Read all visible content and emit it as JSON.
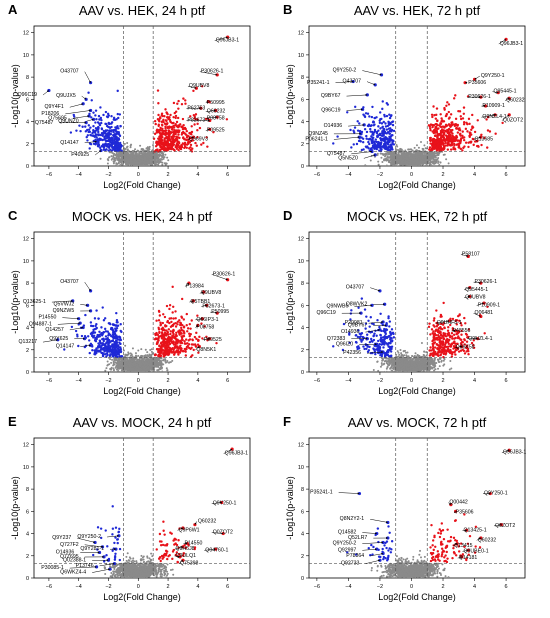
{
  "chart_data": [
    {
      "panel_letter": "A",
      "type": "scatter",
      "title": "AAV vs. HEK, 24 h ptf",
      "xlabel": "Log2(Fold Change)",
      "ylabel": "-Log10(p-value)",
      "xlim": [
        -7,
        7.5
      ],
      "ylim": [
        0,
        12.6
      ],
      "xticks": [
        -6,
        -4,
        -2,
        0,
        2,
        4,
        6
      ],
      "yticks": [
        0,
        2,
        4,
        6,
        8,
        10,
        12
      ],
      "fc_threshold": [
        -1,
        1
      ],
      "p_threshold": 1.3,
      "grid": false,
      "up_count": 430,
      "down_count": 310,
      "labels": [
        {
          "text": "Q96JB3-1",
          "x": 6.0,
          "y": 11.6,
          "tx": 5.2,
          "ty": 11.2
        },
        {
          "text": "O43707",
          "x": -3.2,
          "y": 7.5,
          "tx": -4.0,
          "ty": 8.4
        },
        {
          "text": "Q96C19",
          "x": -6.0,
          "y": 6.8,
          "tx": -6.8,
          "ty": 6.3
        },
        {
          "text": "Q9Y4F1",
          "x": -3.7,
          "y": 5.6,
          "tx": -5.0,
          "ty": 5.2
        },
        {
          "text": "Q9UJX5",
          "x": -3.5,
          "y": 6.0,
          "tx": -4.2,
          "ty": 6.2
        },
        {
          "text": "P18206",
          "x": -3.2,
          "y": 5.0,
          "tx": -5.3,
          "ty": 4.6
        },
        {
          "text": "Q75695",
          "x": -3.3,
          "y": 4.5,
          "tx": -4.8,
          "ty": 4.2
        },
        {
          "text": "Q9UNZ0",
          "x": -3.0,
          "y": 4.2,
          "tx": -4.0,
          "ty": 3.9
        },
        {
          "text": "Q75487",
          "x": -3.5,
          "y": 3.9,
          "tx": -5.7,
          "ty": 3.8
        },
        {
          "text": "Q14147",
          "x": -2.8,
          "y": 2.2,
          "tx": -4.0,
          "ty": 2.0
        },
        {
          "text": "P40925",
          "x": -2.5,
          "y": 1.4,
          "tx": -3.3,
          "ty": 0.9
        },
        {
          "text": "P30626-1",
          "x": 5.3,
          "y": 8.2,
          "tx": 4.2,
          "ty": 8.4
        },
        {
          "text": "Q9UBV8",
          "x": 3.9,
          "y": 7.0,
          "tx": 3.4,
          "ty": 7.1
        },
        {
          "text": "P50995",
          "x": 4.7,
          "y": 5.8,
          "tx": 4.6,
          "ty": 5.6
        },
        {
          "text": "P62753",
          "x": 4.2,
          "y": 5.2,
          "tx": 3.3,
          "ty": 5.1
        },
        {
          "text": "Q60232",
          "x": 5.2,
          "y": 5.0,
          "tx": 4.6,
          "ty": 4.8
        },
        {
          "text": "P08758",
          "x": 5.3,
          "y": 4.4,
          "tx": 4.6,
          "ty": 4.2
        },
        {
          "text": "P82673-1",
          "x": 4.8,
          "y": 4.1,
          "tx": 3.3,
          "ty": 4.0
        },
        {
          "text": "P09525",
          "x": 4.8,
          "y": 3.3,
          "tx": 4.6,
          "ty": 3.1
        },
        {
          "text": "Q969V3",
          "x": 3.7,
          "y": 2.6,
          "tx": 3.4,
          "ty": 2.3
        }
      ]
    },
    {
      "panel_letter": "B",
      "type": "scatter",
      "title": "AAV vs. HEK, 72 h ptf",
      "xlabel": "Log2(Fold Change)",
      "ylabel": "-Log10(p-value)",
      "xlim": [
        -6.5,
        7.2
      ],
      "ylim": [
        0,
        12.6
      ],
      "xticks": [
        -6,
        -4,
        -2,
        0,
        2,
        4,
        6
      ],
      "yticks": [
        0,
        2,
        4,
        6,
        8,
        10,
        12
      ],
      "fc_threshold": [
        -1,
        1
      ],
      "p_threshold": 1.3,
      "grid": false,
      "up_count": 420,
      "down_count": 280,
      "labels": [
        {
          "text": "Q96JB3-1",
          "x": 6.0,
          "y": 11.4,
          "tx": 5.6,
          "ty": 10.9
        },
        {
          "text": "Q9Y250-2",
          "x": -1.9,
          "y": 8.2,
          "tx": -3.5,
          "ty": 8.5
        },
        {
          "text": "P35241-1",
          "x": -3.7,
          "y": 7.6,
          "tx": -5.2,
          "ty": 7.4
        },
        {
          "text": "Q43707",
          "x": -2.3,
          "y": 7.3,
          "tx": -3.2,
          "ty": 7.5
        },
        {
          "text": "Q9BY67",
          "x": -2.8,
          "y": 6.4,
          "tx": -4.5,
          "ty": 6.2
        },
        {
          "text": "Q96C19",
          "x": -3.1,
          "y": 5.1,
          "tx": -4.5,
          "ty": 4.9
        },
        {
          "text": "O14936",
          "x": -3.0,
          "y": 3.7,
          "tx": -4.4,
          "ty": 3.5
        },
        {
          "text": "Q9NZ45",
          "x": -3.2,
          "y": 2.9,
          "tx": -5.3,
          "ty": 2.8
        },
        {
          "text": "P06241-1",
          "x": -3.3,
          "y": 2.6,
          "tx": -5.3,
          "ty": 2.3
        },
        {
          "text": "Q75487",
          "x": -2.5,
          "y": 1.3,
          "tx": -4.2,
          "ty": 1.0
        },
        {
          "text": "Q5N5Z0",
          "x": -2.3,
          "y": 1.0,
          "tx": -3.4,
          "ty": 0.6
        },
        {
          "text": "Q9Y250-1",
          "x": 4.0,
          "y": 7.8,
          "tx": 4.4,
          "ty": 8.0
        },
        {
          "text": "P35606",
          "x": 3.4,
          "y": 7.5,
          "tx": 3.6,
          "ty": 7.4
        },
        {
          "text": "Q95445-1",
          "x": 5.5,
          "y": 6.6,
          "tx": 5.2,
          "ty": 6.6
        },
        {
          "text": "P30626-1",
          "x": 4.4,
          "y": 6.2,
          "tx": 3.6,
          "ty": 6.1
        },
        {
          "text": "Q60232",
          "x": 6.2,
          "y": 6.1,
          "tx": 6.0,
          "ty": 5.8
        },
        {
          "text": "P10909-1",
          "x": 4.7,
          "y": 5.4,
          "tx": 4.5,
          "ty": 5.3
        },
        {
          "text": "Q9NZL4-1",
          "x": 5.3,
          "y": 4.6,
          "tx": 4.5,
          "ty": 4.3
        },
        {
          "text": "Q0ZOT2",
          "x": 6.2,
          "y": 4.6,
          "tx": 5.8,
          "ty": 4.0
        },
        {
          "text": "Q13685",
          "x": 4.4,
          "y": 2.6,
          "tx": 4.0,
          "ty": 2.3
        }
      ]
    },
    {
      "panel_letter": "C",
      "type": "scatter",
      "title": "MOCK vs. HEK, 24 h ptf",
      "xlabel": "Log2(Fold Change)",
      "ylabel": "-Log10(p-value)",
      "xlim": [
        -7,
        7.5
      ],
      "ylim": [
        0,
        12.6
      ],
      "xticks": [
        -6,
        -4,
        -2,
        0,
        2,
        4,
        6
      ],
      "yticks": [
        0,
        2,
        4,
        6,
        8,
        10,
        12
      ],
      "fc_threshold": [
        -1,
        1
      ],
      "p_threshold": 1.3,
      "grid": false,
      "up_count": 400,
      "down_count": 320,
      "labels": [
        {
          "text": "P30626-1",
          "x": 6.0,
          "y": 8.3,
          "tx": 5.0,
          "ty": 8.7
        },
        {
          "text": "O43707",
          "x": -3.2,
          "y": 7.3,
          "tx": -4.0,
          "ty": 8.0
        },
        {
          "text": "Q13625-1",
          "x": -4.4,
          "y": 6.4,
          "tx": -6.2,
          "ty": 6.2
        },
        {
          "text": "Q5VWJ2",
          "x": -3.4,
          "y": 6.0,
          "tx": -4.3,
          "ty": 6.0
        },
        {
          "text": "Q9NZW5",
          "x": -3.2,
          "y": 5.5,
          "tx": -4.3,
          "ty": 5.4
        },
        {
          "text": "P14550",
          "x": -4.0,
          "y": 4.8,
          "tx": -5.5,
          "ty": 4.8
        },
        {
          "text": "Q94887-1",
          "x": -3.9,
          "y": 4.4,
          "tx": -5.8,
          "ty": 4.2
        },
        {
          "text": "Q14257",
          "x": -3.7,
          "y": 4.0,
          "tx": -5.0,
          "ty": 3.7
        },
        {
          "text": "Q13217",
          "x": -5.4,
          "y": 2.9,
          "tx": -6.8,
          "ty": 2.6
        },
        {
          "text": "Q9Y625",
          "x": -3.6,
          "y": 3.0,
          "tx": -4.7,
          "ty": 2.9
        },
        {
          "text": "Q14147",
          "x": -3.2,
          "y": 2.4,
          "tx": -4.3,
          "ty": 2.2
        },
        {
          "text": "P13984",
          "x": 3.4,
          "y": 8.0,
          "tx": 3.2,
          "ty": 7.6
        },
        {
          "text": "Q9UBV8",
          "x": 4.4,
          "y": 7.2,
          "tx": 4.2,
          "ty": 7.0
        },
        {
          "text": "Q5TBB1",
          "x": 3.7,
          "y": 6.4,
          "tx": 3.5,
          "ty": 6.2
        },
        {
          "text": "P82673-1",
          "x": 4.6,
          "y": 6.0,
          "tx": 4.3,
          "ty": 5.8
        },
        {
          "text": "P50995",
          "x": 5.3,
          "y": 5.3,
          "tx": 4.9,
          "ty": 5.3
        },
        {
          "text": "Q66IP3-1",
          "x": 4.3,
          "y": 4.8,
          "tx": 3.9,
          "ty": 4.6
        },
        {
          "text": "P08758",
          "x": 4.0,
          "y": 4.2,
          "tx": 3.9,
          "ty": 3.9
        },
        {
          "text": "P09525",
          "x": 4.8,
          "y": 3.0,
          "tx": 4.4,
          "ty": 2.8
        },
        {
          "text": "Q8N5K1",
          "x": 4.1,
          "y": 2.3,
          "tx": 3.9,
          "ty": 1.9
        }
      ]
    },
    {
      "panel_letter": "D",
      "type": "scatter",
      "title": "MOCK vs. HEK, 72 h ptf",
      "xlabel": "Log2(Fold Change)",
      "ylabel": "-Log10(p-value)",
      "xlim": [
        -6.5,
        7.2
      ],
      "ylim": [
        0,
        12.6
      ],
      "xticks": [
        -6,
        -4,
        -2,
        0,
        2,
        4,
        6
      ],
      "yticks": [
        0,
        2,
        4,
        6,
        8,
        10,
        12
      ],
      "fc_threshold": [
        -1,
        1
      ],
      "p_threshold": 1.3,
      "grid": false,
      "up_count": 300,
      "down_count": 210,
      "labels": [
        {
          "text": "P58107",
          "x": 3.6,
          "y": 10.4,
          "tx": 3.2,
          "ty": 10.5
        },
        {
          "text": "O43707",
          "x": -2.0,
          "y": 7.3,
          "tx": -3.0,
          "ty": 7.5
        },
        {
          "text": "Q9NWB6",
          "x": -2.5,
          "y": 6.0,
          "tx": -4.0,
          "ty": 5.8
        },
        {
          "text": "Q8WVK2",
          "x": -1.7,
          "y": 6.1,
          "tx": -2.8,
          "ty": 6.0
        },
        {
          "text": "Q96C19",
          "x": -3.2,
          "y": 5.3,
          "tx": -4.8,
          "ty": 5.2
        },
        {
          "text": "P20081",
          "x": -1.8,
          "y": 4.5,
          "tx": -3.1,
          "ty": 4.3
        },
        {
          "text": "Q9BY67",
          "x": -1.6,
          "y": 4.2,
          "tx": -2.8,
          "ty": 4.1
        },
        {
          "text": "O14936",
          "x": -2.0,
          "y": 3.8,
          "tx": -3.3,
          "ty": 3.5
        },
        {
          "text": "Q72383",
          "x": -2.8,
          "y": 3.0,
          "tx": -4.2,
          "ty": 2.9
        },
        {
          "text": "Q96IZ0",
          "x": -2.2,
          "y": 2.5,
          "tx": -3.7,
          "ty": 2.4
        },
        {
          "text": "P42356",
          "x": -1.8,
          "y": 1.8,
          "tx": -3.2,
          "ty": 1.6
        },
        {
          "text": "P30626-1",
          "x": 4.4,
          "y": 8.0,
          "tx": 4.0,
          "ty": 8.0
        },
        {
          "text": "Q95445-1",
          "x": 3.7,
          "y": 7.6,
          "tx": 3.4,
          "ty": 7.3
        },
        {
          "text": "Q9UBV8",
          "x": 3.7,
          "y": 6.8,
          "tx": 3.4,
          "ty": 6.6
        },
        {
          "text": "P10909-1",
          "x": 4.6,
          "y": 6.2,
          "tx": 4.2,
          "ty": 5.9
        },
        {
          "text": "Q06481",
          "x": 4.4,
          "y": 5.0,
          "tx": 4.0,
          "ty": 5.2
        },
        {
          "text": "Q9UHF8-1",
          "x": 2.4,
          "y": 4.6,
          "tx": 1.6,
          "ty": 4.3
        },
        {
          "text": "P48556",
          "x": 2.8,
          "y": 3.7,
          "tx": 2.6,
          "ty": 3.6
        },
        {
          "text": "Q9NZL4-1",
          "x": 4.2,
          "y": 3.0,
          "tx": 3.6,
          "ty": 2.9
        },
        {
          "text": "Q96K58",
          "x": 3.2,
          "y": 2.3,
          "tx": 2.8,
          "ty": 2.1
        }
      ]
    },
    {
      "panel_letter": "E",
      "type": "scatter",
      "title": "AAV vs. MOCK, 24 h ptf",
      "xlabel": "Log2(Fold Change)",
      "ylabel": "-Log10(p-value)",
      "xlim": [
        -7,
        7.5
      ],
      "ylim": [
        0,
        12.6
      ],
      "xticks": [
        -6,
        -4,
        -2,
        0,
        2,
        4,
        6
      ],
      "yticks": [
        0,
        2,
        4,
        6,
        8,
        10,
        12
      ],
      "fc_threshold": [
        -1,
        1
      ],
      "p_threshold": 1.3,
      "grid": false,
      "up_count": 60,
      "down_count": 30,
      "labels": [
        {
          "text": "Q96JB3-1",
          "x": 6.3,
          "y": 11.6,
          "tx": 5.8,
          "ty": 11.1
        },
        {
          "text": "Q9Y250-1",
          "x": 5.6,
          "y": 6.8,
          "tx": 5.0,
          "ty": 6.6
        },
        {
          "text": "Q9Y250-2",
          "x": -1.3,
          "y": 3.8,
          "tx": -2.5,
          "ty": 3.6
        },
        {
          "text": "Q9Y237",
          "x": -2.9,
          "y": 3.2,
          "tx": -4.5,
          "ty": 3.5
        },
        {
          "text": "Q727F2",
          "x": -2.4,
          "y": 2.8,
          "tx": -4.0,
          "ty": 2.9
        },
        {
          "text": "Q9Y281-1",
          "x": -1.5,
          "y": 2.6,
          "tx": -2.3,
          "ty": 2.5
        },
        {
          "text": "O14936",
          "x": -2.6,
          "y": 2.3,
          "tx": -4.3,
          "ty": 2.2
        },
        {
          "text": "Q7Z695",
          "x": -2.3,
          "y": 1.9,
          "tx": -4.0,
          "ty": 1.8
        },
        {
          "text": "Q02388-1",
          "x": -2.0,
          "y": 1.6,
          "tx": -3.5,
          "ty": 1.5
        },
        {
          "text": "P13746",
          "x": -1.6,
          "y": 1.3,
          "tx": -3.0,
          "ty": 1.0
        },
        {
          "text": "P30085-1",
          "x": -2.8,
          "y": 1.0,
          "tx": -5.0,
          "ty": 0.8
        },
        {
          "text": "Q6WKZ4-4",
          "x": -1.9,
          "y": 0.8,
          "tx": -3.5,
          "ty": 0.4
        },
        {
          "text": "Q60232",
          "x": 3.8,
          "y": 4.8,
          "tx": 4.0,
          "ty": 5.0
        },
        {
          "text": "Q9P6W1",
          "x": 3.0,
          "y": 4.5,
          "tx": 2.7,
          "ty": 4.2
        },
        {
          "text": "Q0ZOT2",
          "x": 5.7,
          "y": 4.0,
          "tx": 5.0,
          "ty": 4.0
        },
        {
          "text": "P14550",
          "x": 3.3,
          "y": 3.1,
          "tx": 3.1,
          "ty": 3.0
        },
        {
          "text": "Q9H5J8",
          "x": 3.0,
          "y": 2.8,
          "tx": 2.5,
          "ty": 2.5
        },
        {
          "text": "Q04760-1",
          "x": 5.2,
          "y": 2.6,
          "tx": 4.5,
          "ty": 2.4
        },
        {
          "text": "Q9ULQ1",
          "x": 2.8,
          "y": 1.9,
          "tx": 2.5,
          "ty": 1.9
        },
        {
          "text": "Q75398",
          "x": 3.0,
          "y": 1.6,
          "tx": 2.8,
          "ty": 1.2
        }
      ]
    },
    {
      "panel_letter": "F",
      "type": "scatter",
      "title": "AAV vs. MOCK, 72 h ptf",
      "xlabel": "Log2(Fold Change)",
      "ylabel": "-Log10(p-value)",
      "xlim": [
        -6.5,
        7.2
      ],
      "ylim": [
        0,
        12.6
      ],
      "xticks": [
        -6,
        -4,
        -2,
        0,
        2,
        4,
        6
      ],
      "yticks": [
        0,
        2,
        4,
        6,
        8,
        10,
        12
      ],
      "fc_threshold": [
        -1,
        1
      ],
      "p_threshold": 1.3,
      "grid": false,
      "up_count": 90,
      "down_count": 35,
      "labels": [
        {
          "text": "Q96JB3-1",
          "x": 6.2,
          "y": 11.5,
          "tx": 5.8,
          "ty": 11.2
        },
        {
          "text": "P35241-1",
          "x": -3.3,
          "y": 7.6,
          "tx": -5.0,
          "ty": 7.6
        },
        {
          "text": "Q9Y250-1",
          "x": 5.0,
          "y": 7.6,
          "tx": 4.6,
          "ty": 7.5
        },
        {
          "text": "Q00442",
          "x": 2.5,
          "y": 6.6,
          "tx": 2.4,
          "ty": 6.7
        },
        {
          "text": "P35606",
          "x": 2.8,
          "y": 6.0,
          "tx": 2.8,
          "ty": 5.8
        },
        {
          "text": "Q8N2Y2-1",
          "x": -1.5,
          "y": 5.0,
          "tx": -3.0,
          "ty": 5.2
        },
        {
          "text": "Q0ZOT2",
          "x": 5.7,
          "y": 4.8,
          "tx": 5.3,
          "ty": 4.6
        },
        {
          "text": "Q13425-1",
          "x": 3.5,
          "y": 4.3,
          "tx": 3.3,
          "ty": 4.2
        },
        {
          "text": "Q14582",
          "x": -2.2,
          "y": 4.0,
          "tx": -3.5,
          "ty": 4.0
        },
        {
          "text": "Q52LR7",
          "x": -1.5,
          "y": 3.6,
          "tx": -2.8,
          "ty": 3.5
        },
        {
          "text": "Q9Y250-2",
          "x": -1.8,
          "y": 3.2,
          "tx": -3.5,
          "ty": 3.0
        },
        {
          "text": "Q60232",
          "x": 4.4,
          "y": 3.6,
          "tx": 4.2,
          "ty": 3.3
        },
        {
          "text": "Q13415",
          "x": 2.9,
          "y": 3.1,
          "tx": 2.7,
          "ty": 2.8
        },
        {
          "text": "Q92997",
          "x": -2.2,
          "y": 2.6,
          "tx": -3.5,
          "ty": 2.4
        },
        {
          "text": "Q9UBE0-1",
          "x": 3.6,
          "y": 2.5,
          "tx": 3.3,
          "ty": 2.3
        },
        {
          "text": "P78364",
          "x": -1.8,
          "y": 2.2,
          "tx": -3.0,
          "ty": 1.9
        },
        {
          "text": "Q14181",
          "x": 3.2,
          "y": 1.9,
          "tx": 3.0,
          "ty": 1.7
        },
        {
          "text": "Q92733",
          "x": -2.0,
          "y": 1.6,
          "tx": -3.3,
          "ty": 1.2
        }
      ]
    }
  ],
  "colors": {
    "up": "#e8121a",
    "down": "#1f29d6",
    "ns": "#8a8a8a",
    "axis": "#000000",
    "threshold": "#555555",
    "label_text": "#000000",
    "arrow": "#000000"
  }
}
